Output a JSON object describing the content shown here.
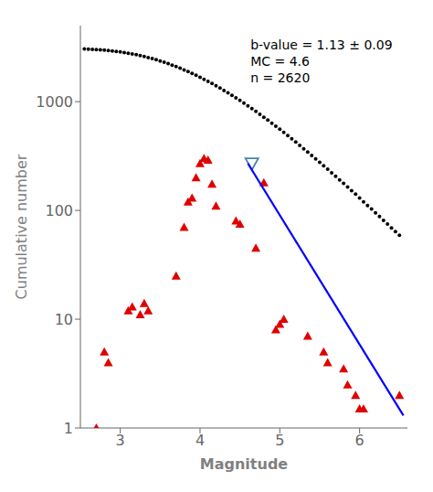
{
  "chart_data": {
    "type": "scatter",
    "xlabel": "Magnitude",
    "ylabel": "Cumulative number",
    "log": "y",
    "xlim": [
      2.5,
      6.6
    ],
    "xticks": [
      3,
      4,
      5,
      6
    ],
    "ylim": [
      1.0,
      5000
    ],
    "yticks": [
      1,
      10,
      100,
      1000
    ],
    "grid": false,
    "annotations": [
      "b-value = 1.13 ± 0.09",
      "MC = 4.6",
      "n = 2620"
    ],
    "series": [
      {
        "type": "scatter",
        "marker": "dot",
        "color": "black",
        "x": [
          2.55,
          2.6,
          2.65,
          2.7,
          2.75,
          2.8,
          2.85,
          2.9,
          2.95,
          3.0,
          3.05,
          3.1,
          3.15,
          3.2,
          3.25,
          3.3,
          3.35,
          3.4,
          3.45,
          3.5,
          3.55,
          3.6,
          3.65,
          3.7,
          3.75,
          3.8,
          3.85,
          3.9,
          3.95,
          4.0,
          4.05,
          4.1,
          4.15,
          4.2,
          4.25,
          4.3,
          4.35,
          4.4,
          4.45,
          4.5,
          4.55,
          4.6,
          4.65,
          4.7,
          4.75,
          4.8,
          4.85,
          4.9,
          4.95,
          5.0,
          5.05,
          5.1,
          5.15,
          5.2,
          5.25,
          5.3,
          5.35,
          5.4,
          5.45,
          5.5,
          5.55,
          5.6,
          5.65,
          5.7,
          5.75,
          5.8,
          5.85,
          5.9,
          5.95,
          6.0,
          6.05,
          6.1,
          6.15,
          6.2,
          6.25,
          6.3,
          6.35,
          6.4,
          6.45,
          6.5
        ],
        "values": [
          3050,
          3040,
          3030,
          3015,
          2998,
          2978,
          2955,
          2928,
          2898,
          2865,
          2828,
          2788,
          2745,
          2699,
          2650,
          2598,
          2543,
          2486,
          2426,
          2364,
          2300,
          2234,
          2167,
          2098,
          2029,
          1959,
          1888,
          1817,
          1746,
          1675,
          1605,
          1536,
          1467,
          1399,
          1333,
          1268,
          1205,
          1143,
          1083,
          1025,
          969,
          915,
          863,
          813,
          765,
          719,
          676,
          634,
          595,
          557,
          521,
          487,
          455,
          425,
          396,
          369,
          344,
          320,
          298,
          277,
          258,
          239,
          222,
          206,
          191,
          177,
          164,
          152,
          141,
          130,
          120,
          111,
          103,
          95,
          88,
          81,
          75,
          69,
          64,
          59
        ]
      },
      {
        "type": "scatter",
        "marker": "triangle-up",
        "color": "#e00000",
        "x": [
          2.7,
          2.8,
          2.85,
          3.1,
          3.15,
          3.25,
          3.3,
          3.35,
          3.7,
          3.8,
          3.85,
          3.9,
          3.95,
          4.0,
          4.05,
          4.1,
          4.15,
          4.2,
          4.45,
          4.5,
          4.7,
          4.8,
          4.95,
          5.0,
          5.05,
          5.35,
          5.55,
          5.6,
          5.8,
          5.85,
          5.95,
          6.0,
          6.05,
          6.5
        ],
        "values": [
          1.0,
          5.0,
          4.0,
          12.0,
          13.0,
          11.0,
          14.0,
          12.0,
          25.0,
          70.0,
          120.0,
          130.0,
          200.0,
          270.0,
          300.0,
          290.0,
          175.0,
          110.0,
          80.0,
          75.0,
          45.0,
          180.0,
          8.0,
          9.0,
          10.0,
          7.0,
          5.0,
          4.0,
          3.5,
          2.5,
          2.0,
          1.5,
          1.5,
          2.0
        ]
      },
      {
        "type": "scatter",
        "marker": "triangle-down-open",
        "color": "steelblue",
        "x": [
          4.65
        ],
        "values": [
          270
        ]
      },
      {
        "type": "line",
        "line_style": "solid",
        "color": "blue",
        "x": [
          4.6,
          6.55
        ],
        "values": [
          270,
          1.3
        ]
      }
    ]
  }
}
